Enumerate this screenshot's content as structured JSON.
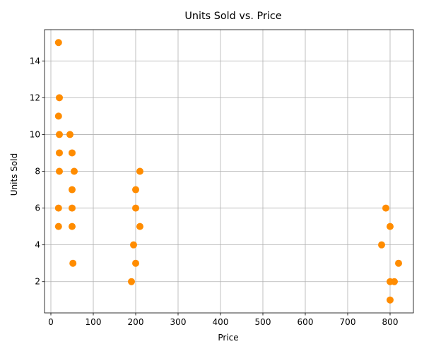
{
  "chart_data": {
    "type": "scatter",
    "title": "Units Sold vs. Price",
    "xlabel": "Price",
    "ylabel": "Units Sold",
    "xlim": [
      -15,
      855
    ],
    "ylim": [
      0.3,
      15.7
    ],
    "xticks": [
      0,
      100,
      200,
      300,
      400,
      500,
      600,
      700,
      800
    ],
    "yticks": [
      2,
      4,
      6,
      8,
      10,
      12,
      14
    ],
    "grid": true,
    "marker_color": "#ff8c00",
    "points": [
      {
        "x": 18,
        "y": 15
      },
      {
        "x": 20,
        "y": 12
      },
      {
        "x": 18,
        "y": 11
      },
      {
        "x": 20,
        "y": 10
      },
      {
        "x": 45,
        "y": 10
      },
      {
        "x": 20,
        "y": 9
      },
      {
        "x": 50,
        "y": 9
      },
      {
        "x": 20,
        "y": 8
      },
      {
        "x": 55,
        "y": 8
      },
      {
        "x": 210,
        "y": 8
      },
      {
        "x": 50,
        "y": 7
      },
      {
        "x": 200,
        "y": 7
      },
      {
        "x": 18,
        "y": 6
      },
      {
        "x": 50,
        "y": 6
      },
      {
        "x": 200,
        "y": 6
      },
      {
        "x": 790,
        "y": 6
      },
      {
        "x": 18,
        "y": 5
      },
      {
        "x": 50,
        "y": 5
      },
      {
        "x": 210,
        "y": 5
      },
      {
        "x": 800,
        "y": 5
      },
      {
        "x": 195,
        "y": 4
      },
      {
        "x": 780,
        "y": 4
      },
      {
        "x": 52,
        "y": 3
      },
      {
        "x": 200,
        "y": 3
      },
      {
        "x": 820,
        "y": 3
      },
      {
        "x": 190,
        "y": 2
      },
      {
        "x": 800,
        "y": 2
      },
      {
        "x": 810,
        "y": 2
      },
      {
        "x": 800,
        "y": 1
      }
    ]
  }
}
